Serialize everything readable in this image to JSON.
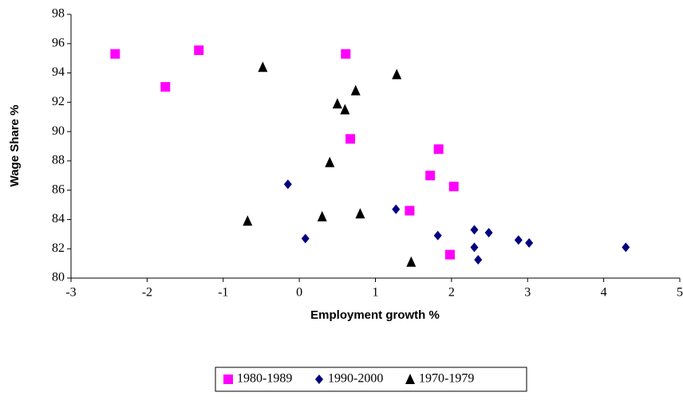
{
  "chart_data": {
    "type": "scatter",
    "x_label": "Employment growth %",
    "y_label": "Wage Share %",
    "xlim": [
      -3,
      5
    ],
    "xticks": [
      -3,
      -2,
      -1,
      0,
      1,
      2,
      3,
      4,
      5
    ],
    "ylim": [
      80,
      98
    ],
    "yticks": [
      80,
      82,
      84,
      86,
      88,
      90,
      92,
      94,
      96,
      98
    ],
    "grid": false,
    "legend": "bottom",
    "series": [
      {
        "name": "1980-1989",
        "color": "#ff00ff",
        "marker": "square",
        "x": [
          -2.42,
          -1.76,
          -1.32,
          0.61,
          0.67,
          1.83,
          1.72,
          2.03,
          1.45,
          1.98
        ],
        "values": [
          95.3,
          93.05,
          95.55,
          95.3,
          89.5,
          88.8,
          87.0,
          86.25,
          84.6,
          81.6
        ]
      },
      {
        "name": "1990-2000",
        "color": "#000080",
        "marker": "diamond",
        "x": [
          -0.15,
          0.08,
          1.27,
          1.82,
          2.3,
          2.49,
          2.3,
          2.35,
          2.88,
          3.02,
          4.29
        ],
        "values": [
          86.4,
          82.7,
          84.7,
          82.9,
          83.3,
          83.1,
          82.1,
          81.25,
          82.6,
          82.4,
          82.1
        ]
      },
      {
        "name": "1970-1979",
        "color": "#000000",
        "marker": "triangle",
        "x": [
          -0.48,
          0.74,
          1.28,
          0.5,
          0.6,
          0.4,
          -0.68,
          0.3,
          0.8,
          1.47
        ],
        "values": [
          94.4,
          92.8,
          93.9,
          91.9,
          91.5,
          87.9,
          83.9,
          84.2,
          84.4,
          81.1
        ]
      }
    ]
  }
}
